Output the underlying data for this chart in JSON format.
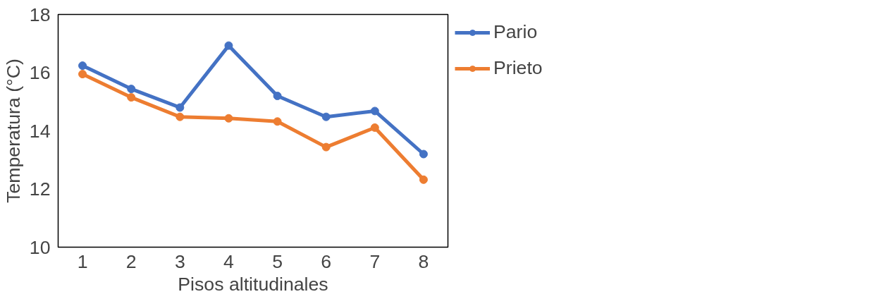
{
  "chart_data": {
    "type": "line",
    "xlabel": "Pisos altitudinales",
    "ylabel": "Temperatura (°C)",
    "categories": [
      "1",
      "2",
      "3",
      "4",
      "5",
      "6",
      "7",
      "8"
    ],
    "series": [
      {
        "name": "Pario",
        "color": "#4472c4",
        "values": [
          16.24,
          15.44,
          14.8,
          16.93,
          15.2,
          14.48,
          14.68,
          13.2
        ]
      },
      {
        "name": "Prieto",
        "color": "#ed7d31",
        "values": [
          15.95,
          15.15,
          14.48,
          14.43,
          14.32,
          13.44,
          14.11,
          12.32
        ]
      }
    ],
    "ylim": [
      10,
      18
    ],
    "yticks": [
      10,
      12,
      14,
      16,
      18
    ],
    "grid": false,
    "legend": "right",
    "marker": "circle",
    "line_style": "solid"
  }
}
